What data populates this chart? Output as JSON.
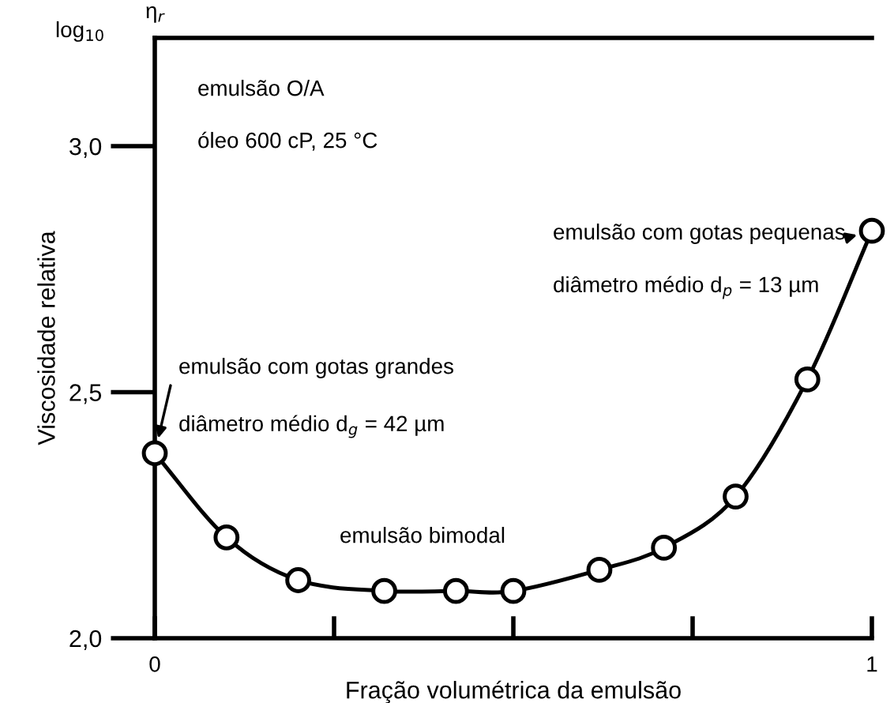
{
  "chart_data": {
    "type": "line",
    "xlabel": "Fração volumétrica da emulsão",
    "ylabel": "Viscosidade relativa",
    "x": [
      0,
      0.1,
      0.2,
      0.32,
      0.42,
      0.5,
      0.62,
      0.71,
      0.81,
      0.91,
      1.0
    ],
    "series": [
      {
        "color": "#000000",
        "values": [
          2.376,
          2.205,
          2.118,
          2.096,
          2.096,
          2.096,
          2.139,
          2.184,
          2.288,
          2.526,
          2.828
        ]
      }
    ],
    "marker": "circle",
    "line_style": "solid",
    "grid": false,
    "legend": false,
    "xlim": [
      0,
      1.0
    ],
    "ylim": [
      2.0,
      3.22
    ],
    "xticks": [
      0,
      {
        "value": 0.25,
        "label": null
      },
      {
        "value": 0.5,
        "label": null
      },
      {
        "value": 0.75,
        "label": null
      },
      1
    ],
    "yticks": [
      {
        "value": 2.0,
        "label": "2,0"
      },
      {
        "value": 2.5,
        "label": "2,5"
      },
      {
        "value": 3.0,
        "label": "3,0"
      }
    ],
    "annotations": [
      "log$_{10}$",
      "η$_{r}$",
      "emulsão O/A",
      "óleo 600 cP, 25 °C",
      "emulsão com gotas grandes",
      "diâmetro médio d$_{g}$ = 42 µm",
      "emulsão com gotas pequenas",
      "diâmetro médio d$_{p}$ = 13 µm",
      "emulsão bimodal"
    ]
  }
}
